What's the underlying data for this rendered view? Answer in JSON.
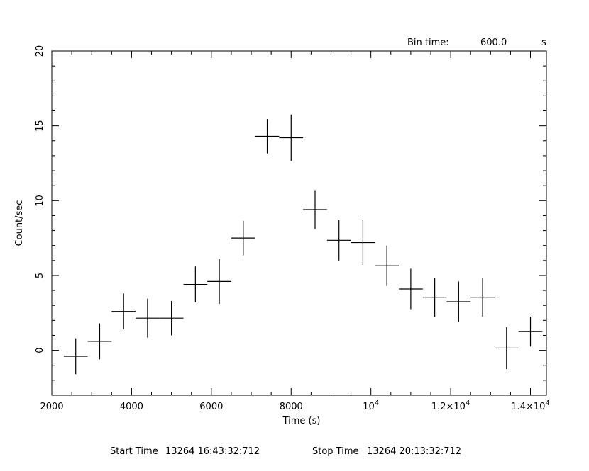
{
  "chart_data": {
    "type": "scatter",
    "style": "error-bars",
    "xlabel": "Time (s)",
    "ylabel": "Count/sec",
    "xlim": [
      2000,
      14400
    ],
    "ylim": [
      -3,
      20
    ],
    "x_ticks": [
      {
        "value": 2000,
        "label": "2000"
      },
      {
        "value": 4000,
        "label": "4000"
      },
      {
        "value": 6000,
        "label": "6000"
      },
      {
        "value": 8000,
        "label": "8000"
      },
      {
        "value": 10000,
        "label": "10",
        "exponent": "4"
      },
      {
        "value": 12000,
        "label": "1.2×10",
        "exponent": "4"
      },
      {
        "value": 14000,
        "label": "1.4×10",
        "exponent": "4"
      }
    ],
    "y_ticks": [
      {
        "value": 0,
        "label": "0"
      },
      {
        "value": 5,
        "label": "5"
      },
      {
        "value": 10,
        "label": "10"
      },
      {
        "value": 15,
        "label": "15"
      },
      {
        "value": 20,
        "label": "20"
      }
    ],
    "bin_time": {
      "label": "Bin time:",
      "value": "600.0",
      "unit": "s"
    },
    "footer": {
      "start_label": "Start Time",
      "start_value": "13264  16:43:32:712",
      "stop_label": "Stop Time",
      "stop_value": "13264  20:13:32:712"
    },
    "x_half_width": 300,
    "points": [
      {
        "x": 2600,
        "y": -0.4,
        "yerr": 1.2
      },
      {
        "x": 3200,
        "y": 0.6,
        "yerr": 1.2
      },
      {
        "x": 3800,
        "y": 2.6,
        "yerr": 1.2
      },
      {
        "x": 4400,
        "y": 2.15,
        "yerr": 1.3
      },
      {
        "x": 5000,
        "y": 2.15,
        "yerr": 1.15
      },
      {
        "x": 5600,
        "y": 4.4,
        "yerr": 1.2
      },
      {
        "x": 6200,
        "y": 4.6,
        "yerr": 1.5
      },
      {
        "x": 6800,
        "y": 7.5,
        "yerr": 1.15
      },
      {
        "x": 7400,
        "y": 14.3,
        "yerr": 1.15
      },
      {
        "x": 8000,
        "y": 14.2,
        "yerr": 1.55
      },
      {
        "x": 8600,
        "y": 9.4,
        "yerr": 1.3
      },
      {
        "x": 9200,
        "y": 7.35,
        "yerr": 1.35
      },
      {
        "x": 9800,
        "y": 7.2,
        "yerr": 1.5
      },
      {
        "x": 10400,
        "y": 5.65,
        "yerr": 1.35
      },
      {
        "x": 11000,
        "y": 4.1,
        "yerr": 1.35
      },
      {
        "x": 11600,
        "y": 3.55,
        "yerr": 1.3
      },
      {
        "x": 12200,
        "y": 3.25,
        "yerr": 1.35
      },
      {
        "x": 12800,
        "y": 3.55,
        "yerr": 1.3
      },
      {
        "x": 13400,
        "y": 0.15,
        "yerr": 1.4
      },
      {
        "x": 14000,
        "y": 1.25,
        "yerr": 1.0
      }
    ]
  }
}
